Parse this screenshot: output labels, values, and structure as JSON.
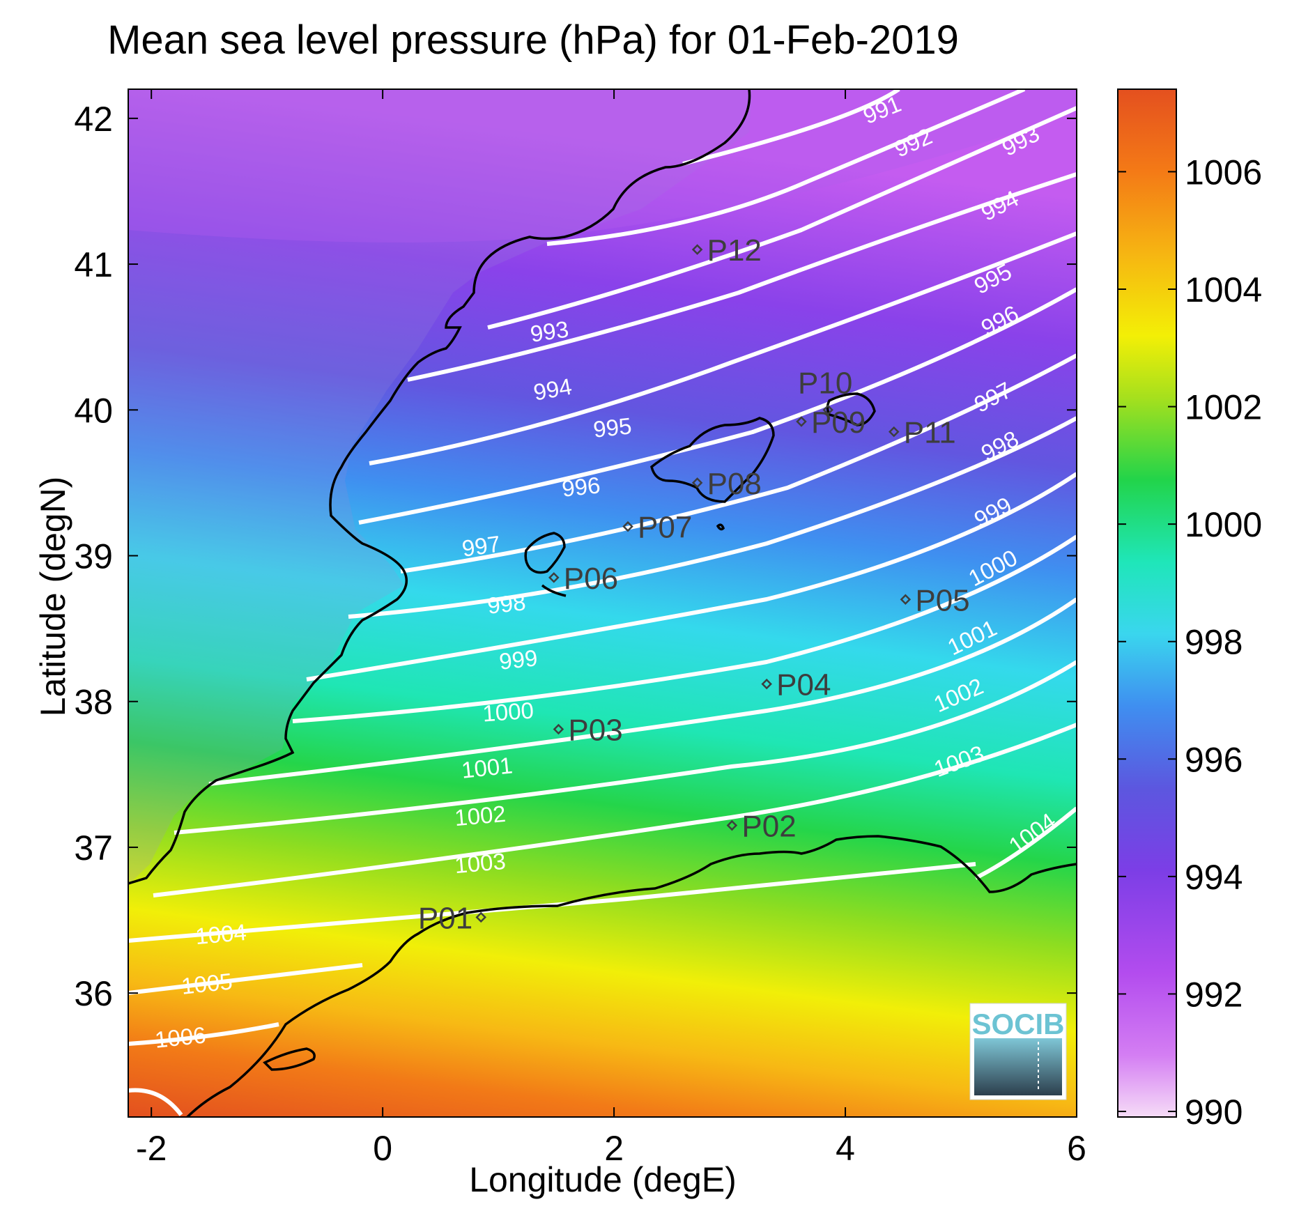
{
  "title": "Mean sea level pressure (hPa) for 01-Feb-2019",
  "axes": {
    "xlabel": "Longitude (degE)",
    "ylabel": "Latitude (degN)",
    "x_range": [
      -2.2,
      6.0
    ],
    "y_range": [
      35.15,
      42.2
    ],
    "x_ticks": [
      "-2",
      "0",
      "2",
      "4",
      "6"
    ],
    "y_ticks": [
      "36",
      "37",
      "38",
      "39",
      "40",
      "41",
      "42"
    ]
  },
  "colorbar": {
    "range": [
      990,
      1007.5
    ],
    "ticks": [
      "990",
      "992",
      "994",
      "996",
      "998",
      "1000",
      "1002",
      "1004",
      "1006"
    ],
    "colormap": [
      "#f6dcf7",
      "#c45cf0",
      "#7c3ee6",
      "#6a4fe0",
      "#3f8ff0",
      "#3ad6ee",
      "#1fe6b9",
      "#22d44a",
      "#a6e01d",
      "#f3ef06",
      "#f6b512",
      "#f47a16",
      "#e4501f"
    ]
  },
  "contour_labels": [
    "991",
    "992",
    "993",
    "993",
    "994",
    "994",
    "995",
    "995",
    "996",
    "996",
    "997",
    "997",
    "998",
    "998",
    "999",
    "999",
    "1000",
    "1000",
    "1001",
    "1001",
    "1002",
    "1002",
    "1003",
    "1003",
    "1004",
    "1004",
    "1005",
    "1006"
  ],
  "stations": [
    {
      "id": "P01",
      "lon": 0.85,
      "lat": 36.52
    },
    {
      "id": "P02",
      "lon": 3.02,
      "lat": 37.15
    },
    {
      "id": "P03",
      "lon": 1.52,
      "lat": 37.81
    },
    {
      "id": "P04",
      "lon": 3.32,
      "lat": 38.12
    },
    {
      "id": "P05",
      "lon": 4.52,
      "lat": 38.7
    },
    {
      "id": "P06",
      "lon": 1.48,
      "lat": 38.85
    },
    {
      "id": "P07",
      "lon": 2.12,
      "lat": 39.2
    },
    {
      "id": "P08",
      "lon": 2.72,
      "lat": 39.5
    },
    {
      "id": "P09",
      "lon": 3.62,
      "lat": 39.92
    },
    {
      "id": "P10",
      "lon": 3.85,
      "lat": 40.0
    },
    {
      "id": "P11",
      "lon": 4.42,
      "lat": 39.85
    },
    {
      "id": "P12",
      "lon": 2.72,
      "lat": 41.1
    }
  ],
  "logo": {
    "text": "SOCIB"
  },
  "colors": {
    "contour": "#ffffff",
    "coastline": "#000000",
    "station": "#3d3d3d"
  }
}
